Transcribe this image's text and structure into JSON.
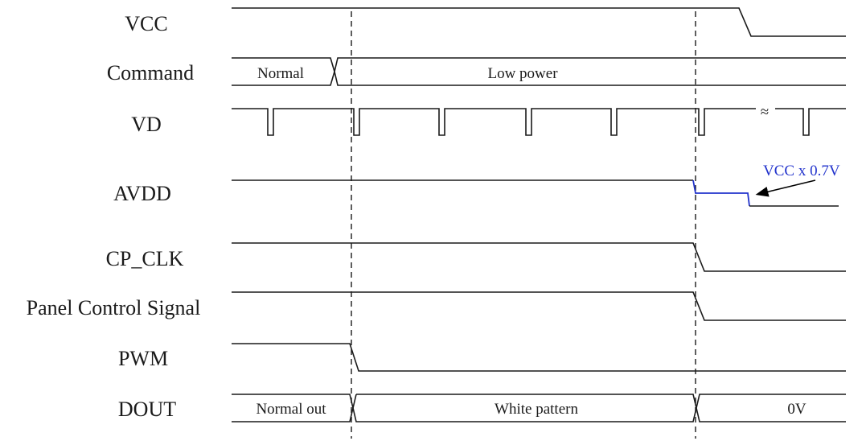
{
  "signals": {
    "vcc": "VCC",
    "command": "Command",
    "vd": "VD",
    "avdd": "AVDD",
    "cp_clk": "CP_CLK",
    "panel_control": "Panel Control Signal",
    "pwm": "PWM",
    "dout": "DOUT"
  },
  "states": {
    "command_normal": "Normal",
    "command_low_power": "Low power",
    "dout_normal_out": "Normal out",
    "dout_white_pattern": "White pattern",
    "dout_zero": "0V"
  },
  "annotation": {
    "text": "VCC x 0.7V",
    "color": "#2233cc"
  },
  "break_mark": "≈"
}
